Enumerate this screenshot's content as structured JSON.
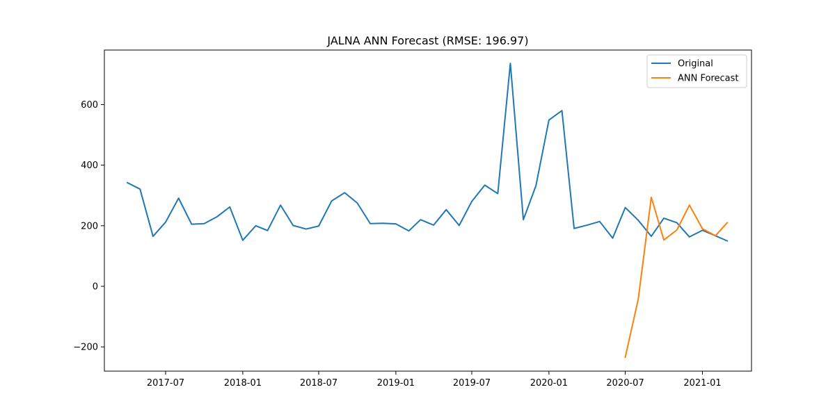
{
  "chart_data": {
    "type": "line",
    "title": "JALNA ANN Forecast (RMSE: 196.97)",
    "xlabel": "",
    "ylabel": "",
    "x_type": "date",
    "xlim": [
      "2017-02-05",
      "2021-04-28"
    ],
    "ylim": [
      -280,
      780
    ],
    "x_ticks": [
      "2017-07-01",
      "2018-01-01",
      "2018-07-01",
      "2019-01-01",
      "2019-07-01",
      "2020-01-01",
      "2020-07-01",
      "2021-01-01"
    ],
    "x_tick_labels": [
      "2017-07",
      "2018-01",
      "2018-07",
      "2019-01",
      "2019-07",
      "2020-01",
      "2020-07",
      "2021-01"
    ],
    "y_ticks": [
      -200,
      0,
      200,
      400,
      600
    ],
    "y_tick_labels": [
      "−200",
      "0",
      "200",
      "400",
      "600"
    ],
    "grid": false,
    "legend_position": "upper right",
    "series": [
      {
        "name": "Original",
        "color": "#1f77b4",
        "points": [
          [
            "2017-04-01",
            342
          ],
          [
            "2017-05-01",
            321
          ],
          [
            "2017-06-01",
            165
          ],
          [
            "2017-07-01",
            212
          ],
          [
            "2017-08-01",
            291
          ],
          [
            "2017-09-01",
            205
          ],
          [
            "2017-10-01",
            207
          ],
          [
            "2017-11-01",
            230
          ],
          [
            "2017-12-01",
            262
          ],
          [
            "2018-01-01",
            152
          ],
          [
            "2018-02-01",
            200
          ],
          [
            "2018-03-01",
            184
          ],
          [
            "2018-04-01",
            268
          ],
          [
            "2018-05-01",
            201
          ],
          [
            "2018-06-01",
            189
          ],
          [
            "2018-07-01",
            199
          ],
          [
            "2018-08-01",
            282
          ],
          [
            "2018-09-01",
            309
          ],
          [
            "2018-10-01",
            275
          ],
          [
            "2018-11-01",
            207
          ],
          [
            "2018-12-01",
            208
          ],
          [
            "2019-01-01",
            206
          ],
          [
            "2019-02-01",
            183
          ],
          [
            "2019-03-01",
            220
          ],
          [
            "2019-04-01",
            202
          ],
          [
            "2019-05-01",
            253
          ],
          [
            "2019-06-01",
            201
          ],
          [
            "2019-07-01",
            280
          ],
          [
            "2019-08-01",
            334
          ],
          [
            "2019-09-01",
            306
          ],
          [
            "2019-10-01",
            736
          ],
          [
            "2019-11-01",
            220
          ],
          [
            "2019-12-01",
            332
          ],
          [
            "2020-01-01",
            549
          ],
          [
            "2020-02-01",
            580
          ],
          [
            "2020-03-01",
            191
          ],
          [
            "2020-04-01",
            202
          ],
          [
            "2020-05-01",
            214
          ],
          [
            "2020-06-01",
            159
          ],
          [
            "2020-07-01",
            260
          ],
          [
            "2020-08-01",
            218
          ],
          [
            "2020-09-01",
            165
          ],
          [
            "2020-10-01",
            225
          ],
          [
            "2020-11-01",
            210
          ],
          [
            "2020-12-01",
            163
          ],
          [
            "2021-01-01",
            185
          ],
          [
            "2021-02-01",
            167
          ],
          [
            "2021-03-01",
            150
          ]
        ]
      },
      {
        "name": "ANN Forecast",
        "color": "#ff7f0e",
        "points": [
          [
            "2020-07-01",
            -234
          ],
          [
            "2020-08-01",
            -42
          ],
          [
            "2020-09-01",
            294
          ],
          [
            "2020-10-01",
            153
          ],
          [
            "2020-11-01",
            186
          ],
          [
            "2020-12-01",
            268
          ],
          [
            "2021-01-01",
            190
          ],
          [
            "2021-02-01",
            167
          ],
          [
            "2021-03-01",
            210
          ]
        ]
      }
    ]
  }
}
